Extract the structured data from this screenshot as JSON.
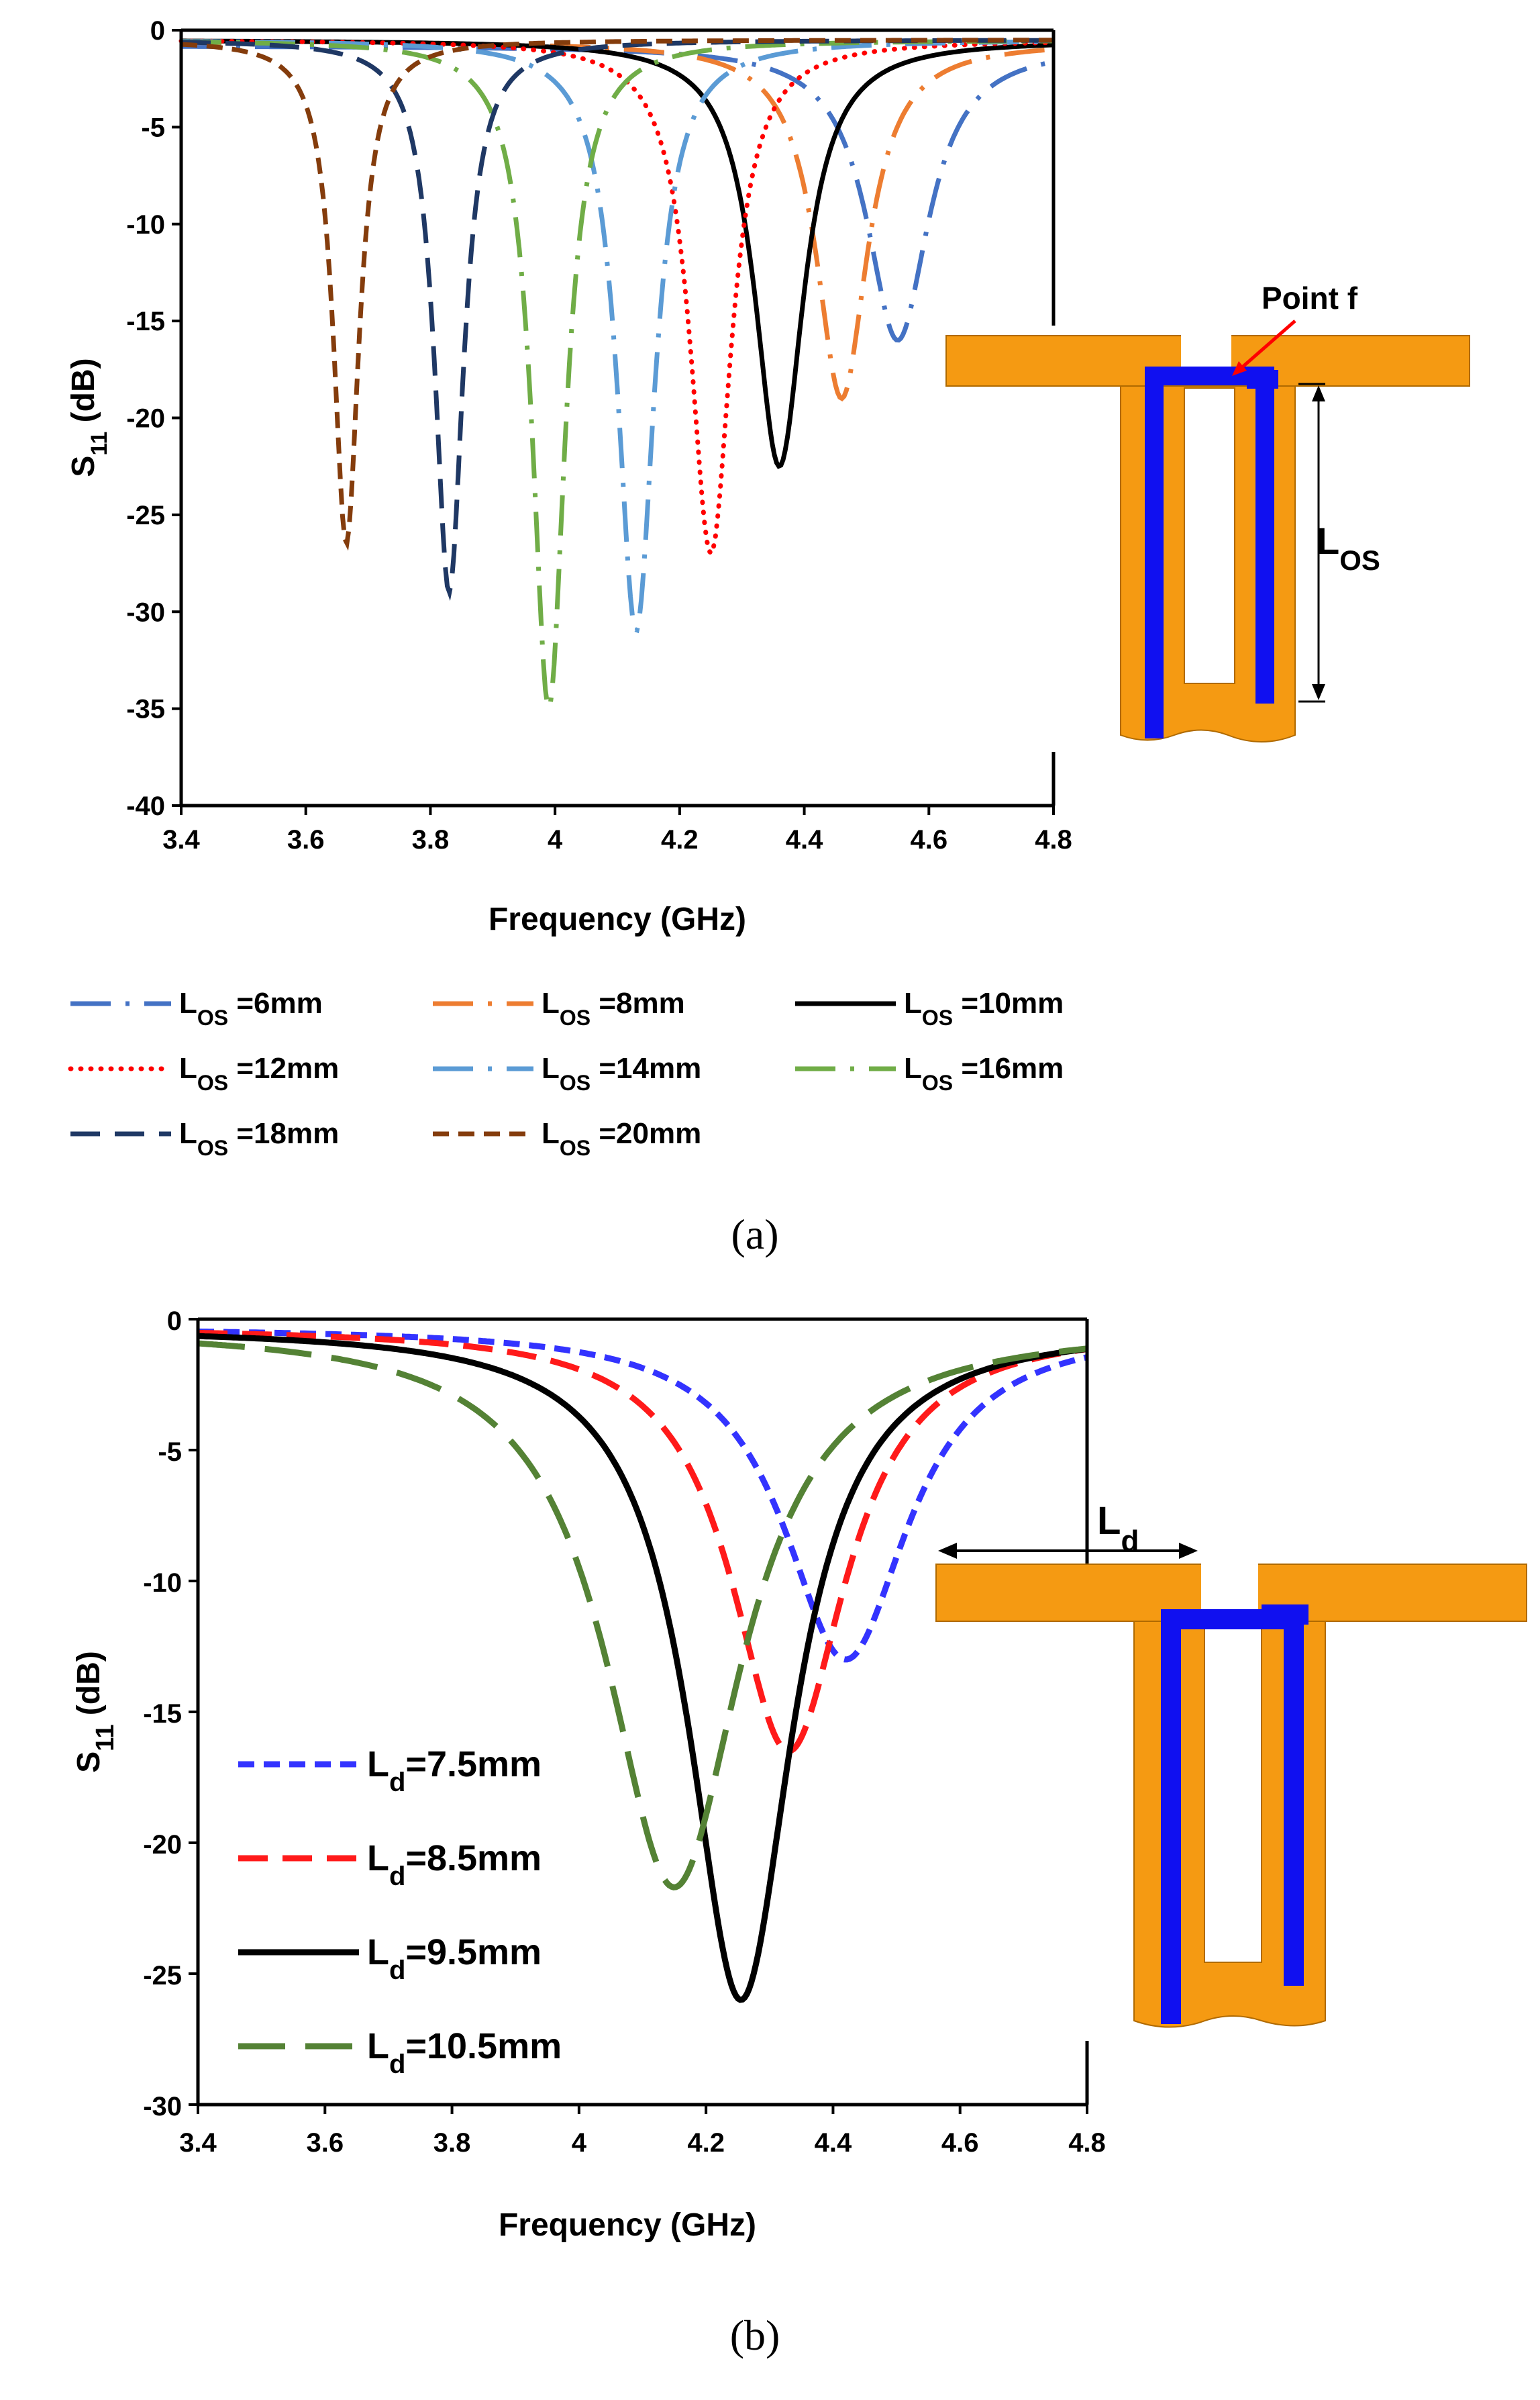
{
  "chart_data": [
    {
      "type": "line",
      "panel_label": "a",
      "xlabel": "Frequency (GHz)",
      "ylabel_main": "S",
      "ylabel_sub": "11",
      "ylabel_rest": " (dB)",
      "xlim": [
        3.4,
        4.8
      ],
      "ylim": [
        -40,
        0
      ],
      "x_ticks": [
        "3.4",
        "3.6",
        "3.8",
        "4",
        "4.2",
        "4.4",
        "4.6",
        "4.8"
      ],
      "y_ticks": [
        "0",
        "-5",
        "-10",
        "-15",
        "-20",
        "-25",
        "-30",
        "-35",
        "-40"
      ],
      "x_tick_values": [
        3.4,
        3.6,
        3.8,
        4.0,
        4.2,
        4.4,
        4.6,
        4.8
      ],
      "y_tick_values": [
        0,
        -5,
        -10,
        -15,
        -20,
        -25,
        -30,
        -35,
        -40
      ],
      "series": [
        {
          "name_main": "L",
          "name_sub": "OS",
          "name_rest": " =6mm",
          "color": "#4472C4",
          "dash": "longdashdot",
          "f0": 4.55,
          "depth": 16.0,
          "bw": 0.06,
          "base": -0.8
        },
        {
          "name_main": "L",
          "name_sub": "OS",
          "name_rest": " =8mm",
          "color": "#ED7D31",
          "dash": "longdashdot",
          "f0": 4.46,
          "depth": 19.0,
          "bw": 0.05,
          "base": -0.6
        },
        {
          "name_main": "L",
          "name_sub": "OS",
          "name_rest": " =10mm",
          "color": "#000000",
          "dash": "solid",
          "f0": 4.36,
          "depth": 22.5,
          "bw": 0.048,
          "base": -0.5
        },
        {
          "name_main": "L",
          "name_sub": "OS",
          "name_rest": " =12mm",
          "color": "#FF0000",
          "dash": "dot",
          "f0": 4.25,
          "depth": 27.0,
          "bw": 0.04,
          "base": -0.5
        },
        {
          "name_main": "L",
          "name_sub": "OS",
          "name_rest": " =14mm",
          "color": "#5B9BD5",
          "dash": "longdashdot",
          "f0": 4.13,
          "depth": 31.0,
          "bw": 0.036,
          "base": -0.5
        },
        {
          "name_main": "L",
          "name_sub": "OS",
          "name_rest": " =16mm",
          "color": "#70AD47",
          "dash": "longdashdot",
          "f0": 3.99,
          "depth": 35.0,
          "bw": 0.032,
          "base": -0.5
        },
        {
          "name_main": "L",
          "name_sub": "OS",
          "name_rest": " =18mm",
          "color": "#1F3864",
          "dash": "dash",
          "f0": 3.83,
          "depth": 29.0,
          "bw": 0.028,
          "base": -0.5
        },
        {
          "name_main": "L",
          "name_sub": "OS",
          "name_rest": " =20mm",
          "color": "#843C0C",
          "dash": "shortdash",
          "f0": 3.665,
          "depth": 26.5,
          "bw": 0.025,
          "base": -0.5
        }
      ]
    },
    {
      "type": "line",
      "panel_label": "b",
      "xlabel": "Frequency (GHz)",
      "ylabel_main": "S",
      "ylabel_sub": "11",
      "ylabel_rest": " (dB)",
      "xlim": [
        3.4,
        4.8
      ],
      "ylim": [
        -30,
        0
      ],
      "x_ticks": [
        "3.4",
        "3.6",
        "3.8",
        "4",
        "4.2",
        "4.4",
        "4.6",
        "4.8"
      ],
      "y_ticks": [
        "0",
        "-5",
        "-10",
        "-15",
        "-20",
        "-25",
        "-30"
      ],
      "x_tick_values": [
        3.4,
        3.6,
        3.8,
        4.0,
        4.2,
        4.4,
        4.6,
        4.8
      ],
      "y_tick_values": [
        0,
        -5,
        -10,
        -15,
        -20,
        -25,
        -30
      ],
      "series": [
        {
          "name_main": "L",
          "name_sub": "d",
          "name_rest": "=7.5mm",
          "color": "#3333FF",
          "dash": "shortdash",
          "f0": 4.42,
          "depth": 13.0,
          "bw": 0.12,
          "base": -0.3
        },
        {
          "name_main": "L",
          "name_sub": "d",
          "name_rest": "=8.5mm",
          "color": "#FF1A1A",
          "dash": "dash",
          "f0": 4.33,
          "depth": 16.5,
          "bw": 0.11,
          "base": -0.3
        },
        {
          "name_main": "L",
          "name_sub": "d",
          "name_rest": "=9.5mm",
          "color": "#000000",
          "dash": "solid",
          "f0": 4.255,
          "depth": 26.0,
          "bw": 0.1,
          "base": -0.3
        },
        {
          "name_main": "L",
          "name_sub": "d",
          "name_rest": "=10.5mm",
          "color": "#548235",
          "dash": "longdash",
          "f0": 4.15,
          "depth": 21.7,
          "bw": 0.13,
          "base": -0.3
        }
      ]
    }
  ],
  "inset_a": {
    "point_label": "Point f",
    "length_main": "L",
    "length_sub": "OS"
  },
  "inset_b": {
    "length_main": "L",
    "length_sub": "d"
  },
  "captions": {
    "a": "(a)",
    "b": "(b)"
  },
  "colors": {
    "patch": "#F59A12",
    "slot": "#1010F0",
    "arrow": "#FF0000"
  }
}
